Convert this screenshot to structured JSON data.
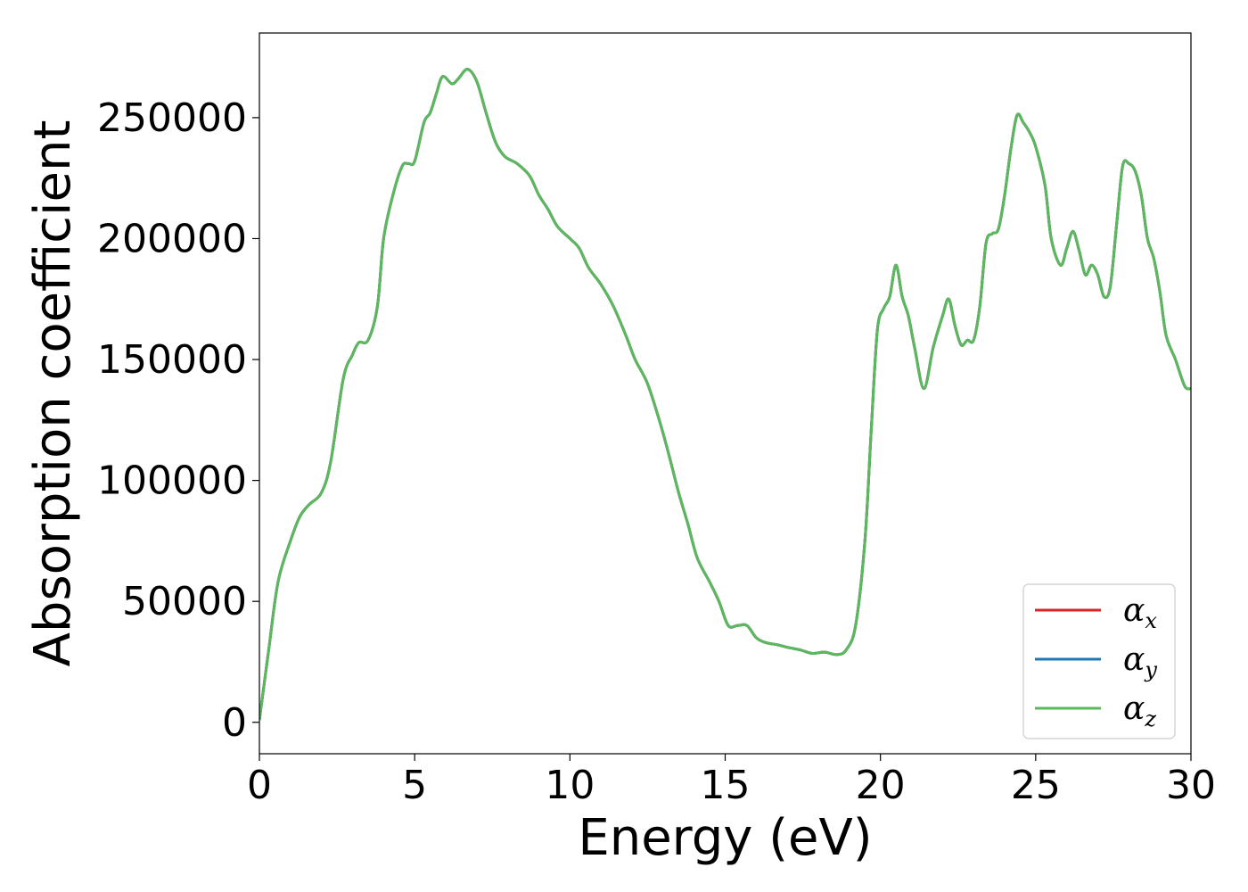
{
  "chart_data": {
    "type": "line",
    "title": "",
    "xlabel": "Energy (eV)",
    "ylabel": "Absorption coefficient",
    "xlim": [
      0,
      30
    ],
    "ylim": [
      -13000,
      285000
    ],
    "xticks": [
      0,
      5,
      10,
      15,
      20,
      25,
      30
    ],
    "xtick_labels": [
      "0",
      "5",
      "10",
      "15",
      "20",
      "25",
      "30"
    ],
    "yticks": [
      0,
      50000,
      100000,
      150000,
      200000,
      250000
    ],
    "ytick_labels": [
      "0",
      "50000",
      "100000",
      "150000",
      "200000",
      "250000"
    ],
    "grid": false,
    "legend": {
      "placement": "lower-right"
    },
    "series": [
      {
        "name": "α",
        "subscript": "x",
        "color": "#d62728",
        "x": [
          0,
          0.3,
          0.6,
          1.0,
          1.3,
          1.6,
          2.0,
          2.3,
          2.7,
          3.0,
          3.2,
          3.5,
          3.8,
          4.0,
          4.3,
          4.6,
          4.8,
          5.0,
          5.3,
          5.5,
          5.7,
          5.9,
          6.2,
          6.4,
          6.7,
          7.0,
          7.3,
          7.6,
          7.9,
          8.3,
          8.7,
          9.0,
          9.3,
          9.6,
          10.0,
          10.3,
          10.6,
          11.0,
          11.4,
          11.8,
          12.1,
          12.5,
          12.9,
          13.2,
          13.5,
          13.8,
          14.1,
          14.5,
          14.8,
          15.1,
          15.4,
          15.7,
          16.0,
          16.3,
          16.7,
          17.0,
          17.4,
          17.8,
          18.2,
          18.6,
          18.9,
          19.2,
          19.5,
          19.7,
          19.9,
          20.1,
          20.3,
          20.5,
          20.7,
          20.9,
          21.1,
          21.4,
          21.7,
          22.0,
          22.2,
          22.4,
          22.6,
          22.8,
          23.0,
          23.2,
          23.4,
          23.6,
          23.8,
          24.0,
          24.2,
          24.4,
          24.6,
          24.8,
          25.0,
          25.3,
          25.5,
          25.8,
          26.0,
          26.2,
          26.4,
          26.6,
          26.8,
          27.0,
          27.2,
          27.4,
          27.6,
          27.8,
          28.0,
          28.2,
          28.4,
          28.6,
          28.8,
          29.0,
          29.2,
          29.5,
          29.8,
          30.0
        ],
        "y": [
          1000,
          30000,
          58000,
          75000,
          85000,
          90000,
          95000,
          108000,
          142000,
          152000,
          157000,
          158000,
          172000,
          200000,
          218000,
          230000,
          231000,
          232000,
          248000,
          252000,
          260000,
          267000,
          264000,
          266000,
          270000,
          265000,
          252000,
          240000,
          234000,
          231000,
          226000,
          218000,
          212000,
          205000,
          200000,
          196000,
          188000,
          181000,
          172000,
          160000,
          150000,
          140000,
          124000,
          110000,
          95000,
          82000,
          68000,
          58000,
          50000,
          40000,
          40000,
          40000,
          35000,
          33000,
          32000,
          31000,
          30000,
          28500,
          29000,
          28000,
          30000,
          40000,
          75000,
          120000,
          162000,
          171000,
          176000,
          189000,
          176000,
          168000,
          155000,
          138000,
          155000,
          168000,
          175000,
          164000,
          156000,
          158000,
          158000,
          172000,
          198000,
          202000,
          204000,
          218000,
          237000,
          251000,
          248000,
          244000,
          238000,
          222000,
          200000,
          189000,
          196000,
          203000,
          195000,
          185000,
          189000,
          185000,
          176000,
          180000,
          205000,
          230000,
          231000,
          228000,
          218000,
          200000,
          192000,
          178000,
          160000,
          150000,
          139000,
          138000
        ]
      },
      {
        "name": "α",
        "subscript": "y",
        "color": "#1f77b4",
        "x": [
          0,
          0.3,
          0.6,
          1.0,
          1.3,
          1.6,
          2.0,
          2.3,
          2.7,
          3.0,
          3.2,
          3.5,
          3.8,
          4.0,
          4.3,
          4.6,
          4.8,
          5.0,
          5.3,
          5.5,
          5.7,
          5.9,
          6.2,
          6.4,
          6.7,
          7.0,
          7.3,
          7.6,
          7.9,
          8.3,
          8.7,
          9.0,
          9.3,
          9.6,
          10.0,
          10.3,
          10.6,
          11.0,
          11.4,
          11.8,
          12.1,
          12.5,
          12.9,
          13.2,
          13.5,
          13.8,
          14.1,
          14.5,
          14.8,
          15.1,
          15.4,
          15.7,
          16.0,
          16.3,
          16.7,
          17.0,
          17.4,
          17.8,
          18.2,
          18.6,
          18.9,
          19.2,
          19.5,
          19.7,
          19.9,
          20.1,
          20.3,
          20.5,
          20.7,
          20.9,
          21.1,
          21.4,
          21.7,
          22.0,
          22.2,
          22.4,
          22.6,
          22.8,
          23.0,
          23.2,
          23.4,
          23.6,
          23.8,
          24.0,
          24.2,
          24.4,
          24.6,
          24.8,
          25.0,
          25.3,
          25.5,
          25.8,
          26.0,
          26.2,
          26.4,
          26.6,
          26.8,
          27.0,
          27.2,
          27.4,
          27.6,
          27.8,
          28.0,
          28.2,
          28.4,
          28.6,
          28.8,
          29.0,
          29.2,
          29.5,
          29.8,
          30.0
        ],
        "y": [
          1000,
          30000,
          58000,
          75000,
          85000,
          90000,
          95000,
          108000,
          142000,
          152000,
          157000,
          158000,
          172000,
          200000,
          218000,
          230000,
          231000,
          232000,
          248000,
          252000,
          260000,
          267000,
          264000,
          266000,
          270000,
          265000,
          252000,
          240000,
          234000,
          231000,
          226000,
          218000,
          212000,
          205000,
          200000,
          196000,
          188000,
          181000,
          172000,
          160000,
          150000,
          140000,
          124000,
          110000,
          95000,
          82000,
          68000,
          58000,
          50000,
          40000,
          40000,
          40000,
          35000,
          33000,
          32000,
          31000,
          30000,
          28500,
          29000,
          28000,
          30000,
          40000,
          75000,
          120000,
          162000,
          171000,
          176000,
          189000,
          176000,
          168000,
          155000,
          138000,
          155000,
          168000,
          175000,
          164000,
          156000,
          158000,
          158000,
          172000,
          198000,
          202000,
          204000,
          218000,
          237000,
          251000,
          248000,
          244000,
          238000,
          222000,
          200000,
          189000,
          196000,
          203000,
          195000,
          185000,
          189000,
          185000,
          176000,
          180000,
          205000,
          230000,
          231000,
          228000,
          218000,
          200000,
          192000,
          178000,
          160000,
          150000,
          139000,
          138000
        ]
      },
      {
        "name": "α",
        "subscript": "z",
        "color": "#5cb85c",
        "x": [
          0,
          0.3,
          0.6,
          1.0,
          1.3,
          1.6,
          2.0,
          2.3,
          2.7,
          3.0,
          3.2,
          3.5,
          3.8,
          4.0,
          4.3,
          4.6,
          4.8,
          5.0,
          5.3,
          5.5,
          5.7,
          5.9,
          6.2,
          6.4,
          6.7,
          7.0,
          7.3,
          7.6,
          7.9,
          8.3,
          8.7,
          9.0,
          9.3,
          9.6,
          10.0,
          10.3,
          10.6,
          11.0,
          11.4,
          11.8,
          12.1,
          12.5,
          12.9,
          13.2,
          13.5,
          13.8,
          14.1,
          14.5,
          14.8,
          15.1,
          15.4,
          15.7,
          16.0,
          16.3,
          16.7,
          17.0,
          17.4,
          17.8,
          18.2,
          18.6,
          18.9,
          19.2,
          19.5,
          19.7,
          19.9,
          20.1,
          20.3,
          20.5,
          20.7,
          20.9,
          21.1,
          21.4,
          21.7,
          22.0,
          22.2,
          22.4,
          22.6,
          22.8,
          23.0,
          23.2,
          23.4,
          23.6,
          23.8,
          24.0,
          24.2,
          24.4,
          24.6,
          24.8,
          25.0,
          25.3,
          25.5,
          25.8,
          26.0,
          26.2,
          26.4,
          26.6,
          26.8,
          27.0,
          27.2,
          27.4,
          27.6,
          27.8,
          28.0,
          28.2,
          28.4,
          28.6,
          28.8,
          29.0,
          29.2,
          29.5,
          29.8,
          30.0
        ],
        "y": [
          1000,
          30000,
          58000,
          75000,
          85000,
          90000,
          95000,
          108000,
          142000,
          152000,
          157000,
          158000,
          172000,
          200000,
          218000,
          230000,
          231000,
          232000,
          248000,
          252000,
          260000,
          267000,
          264000,
          266000,
          270000,
          265000,
          252000,
          240000,
          234000,
          231000,
          226000,
          218000,
          212000,
          205000,
          200000,
          196000,
          188000,
          181000,
          172000,
          160000,
          150000,
          140000,
          124000,
          110000,
          95000,
          82000,
          68000,
          58000,
          50000,
          40000,
          40000,
          40000,
          35000,
          33000,
          32000,
          31000,
          30000,
          28500,
          29000,
          28000,
          30000,
          40000,
          75000,
          120000,
          162000,
          171000,
          176000,
          189000,
          176000,
          168000,
          155000,
          138000,
          155000,
          168000,
          175000,
          164000,
          156000,
          158000,
          158000,
          172000,
          198000,
          202000,
          204000,
          218000,
          237000,
          251000,
          248000,
          244000,
          238000,
          222000,
          200000,
          189000,
          196000,
          203000,
          195000,
          185000,
          189000,
          185000,
          176000,
          180000,
          205000,
          230000,
          231000,
          228000,
          218000,
          200000,
          192000,
          178000,
          160000,
          150000,
          139000,
          138000
        ]
      }
    ]
  }
}
